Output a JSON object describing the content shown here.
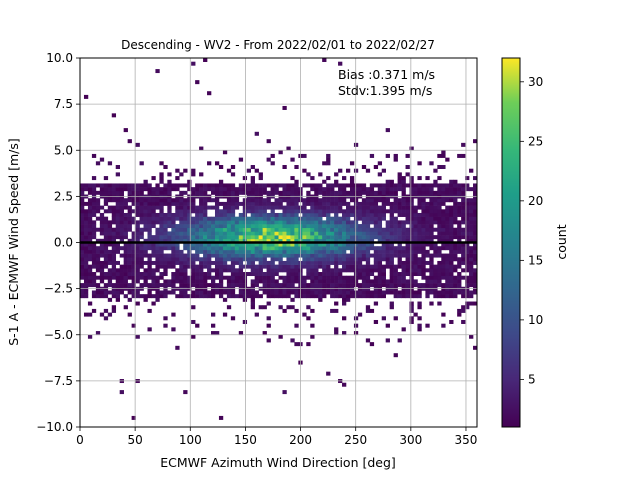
{
  "chart_data": {
    "type": "heatmap",
    "title": "Descending - WV2 - From 2022/02/01 to 2022/02/27",
    "xlabel": "ECMWF Azimuth Wind Direction [deg]",
    "ylabel": "S-1 A - ECMWF Wind Speed [m/s]",
    "xlim": [
      0,
      360
    ],
    "ylim": [
      -10,
      10
    ],
    "xticks": [
      "0",
      "50",
      "100",
      "150",
      "200",
      "250",
      "300",
      "350"
    ],
    "yticks": [
      "−10.0",
      "−7.5",
      "−5.0",
      "−2.5",
      "0.0",
      "2.5",
      "5.0",
      "7.5",
      "10.0"
    ],
    "grid": true,
    "annotations": [
      "Bias :0.371 m/s",
      "Stdv:1.395 m/s"
    ],
    "reference_line_y": 0,
    "colorbar": {
      "label": "count",
      "range": [
        1,
        32
      ],
      "ticks": [
        "5",
        "10",
        "15",
        "20",
        "25",
        "30"
      ],
      "colormap": "viridis"
    },
    "density_model": {
      "bin_width_deg": 3.6,
      "bin_height_ms": 0.2,
      "core": {
        "x_center": 175,
        "x_sigma": 55,
        "y_center": 0.3,
        "y_sigma": 0.75,
        "peak_count": 32
      },
      "broad_band": {
        "y_min": -3.0,
        "y_max": 3.2,
        "typical_count": 2
      }
    }
  },
  "colors": {
    "viridis_low": "#440154",
    "viridis_mid": "#21918c",
    "viridis_high": "#fde725",
    "reference_line": "#000000",
    "grid": "#b0b0b0"
  }
}
